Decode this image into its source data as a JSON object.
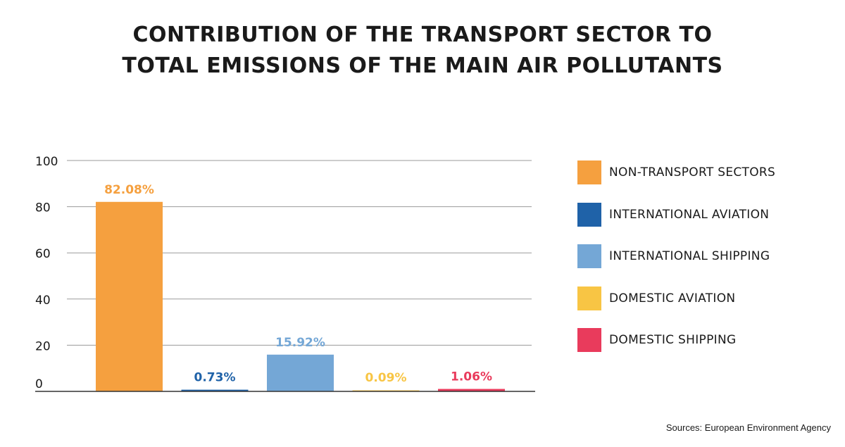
{
  "chart_data": {
    "type": "bar",
    "title_lines": [
      "CONTRIBUTION OF THE TRANSPORT SECTOR TO",
      "TOTAL EMISSIONS OF THE MAIN AIR POLLUTANTS"
    ],
    "categories": [
      "NON-TRANSPORT SECTORS",
      "INTERNATIONAL AVIATION",
      "INTERNATIONAL SHIPPING",
      "DOMESTIC AVIATION",
      "DOMESTIC SHIPPING"
    ],
    "values": [
      82.08,
      0.73,
      15.92,
      0.09,
      1.06
    ],
    "data_labels": [
      "82.08%",
      "0.73%",
      "15.92%",
      "0.09%",
      "1.06%"
    ],
    "colors": [
      "#F5A03F",
      "#1F62A8",
      "#74A7D6",
      "#F8C544",
      "#E93B5C"
    ],
    "ylim": [
      0,
      100
    ],
    "yticks": [
      0,
      20,
      40,
      60,
      80,
      100
    ],
    "grid": true,
    "legend_position": "right",
    "xlabel": "",
    "ylabel": ""
  },
  "source": "Sources: European Environment Agency"
}
